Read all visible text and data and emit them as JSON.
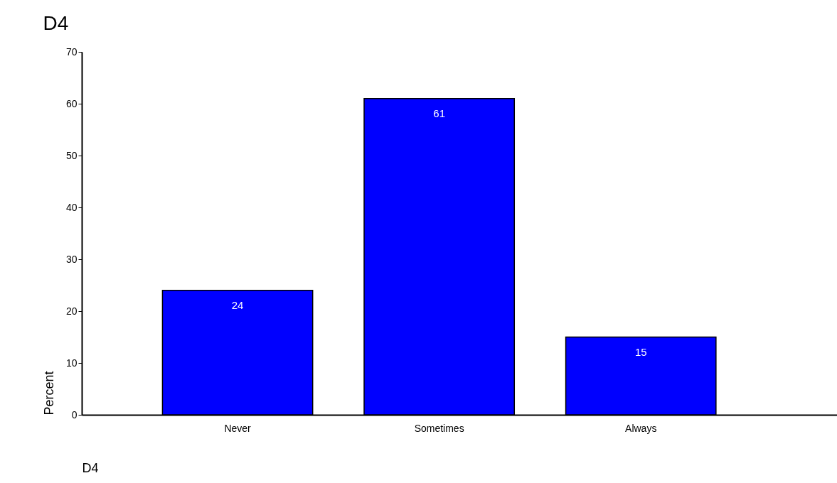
{
  "chart_data": {
    "type": "bar",
    "title": "D4",
    "xlabel": "D4",
    "ylabel": "Percent",
    "categories": [
      "Never",
      "Sometimes",
      "Always"
    ],
    "values": [
      24,
      61,
      15
    ],
    "color": "#0000ff",
    "ylim": [
      0,
      70
    ],
    "yticks": [
      0,
      10,
      20,
      30,
      40,
      50,
      60,
      70
    ],
    "grid": false,
    "data_labels": true
  }
}
